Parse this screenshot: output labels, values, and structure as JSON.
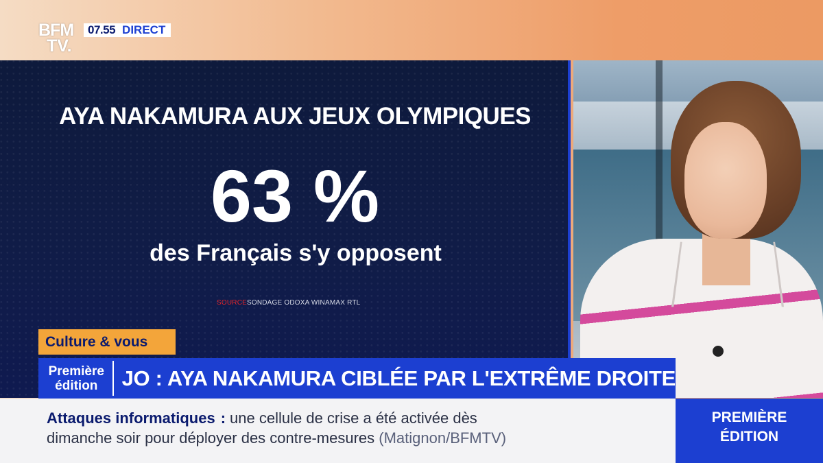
{
  "header": {
    "logo_line1": "BFM",
    "logo_line2": "TV.",
    "time": "07.55",
    "live_label": "DIRECT"
  },
  "graphic": {
    "title": "AYA NAKAMURA AUX JEUX OLYMPIQUES",
    "stat": "63 %",
    "stat_caption": "des Français s'y opposent",
    "source_label": "SOURCE",
    "source_text": "SONDAGE ODOXA WINAMAX RTL"
  },
  "lower_third": {
    "segment_tag": "Culture & vous",
    "edition_line1": "Première",
    "edition_line2": "édition",
    "headline": "JO : AYA NAKAMURA CIBLÉE PAR L'EXTRÊME DROITE"
  },
  "ticker": {
    "topic": "Attaques informatiques",
    "line1_text": "une cellule de crise a été activée dès",
    "line2_text": "dimanche soir pour déployer des contre-mesures",
    "credit": "(Matignon/BFMTV)"
  },
  "show": {
    "line1": "PREMIÈRE",
    "line2": "ÉDITION"
  },
  "colors": {
    "brand_blue": "#1c3fd1",
    "navy": "#0a1a6e",
    "tag_orange": "#f3a53a",
    "source_red": "#e0252b"
  }
}
